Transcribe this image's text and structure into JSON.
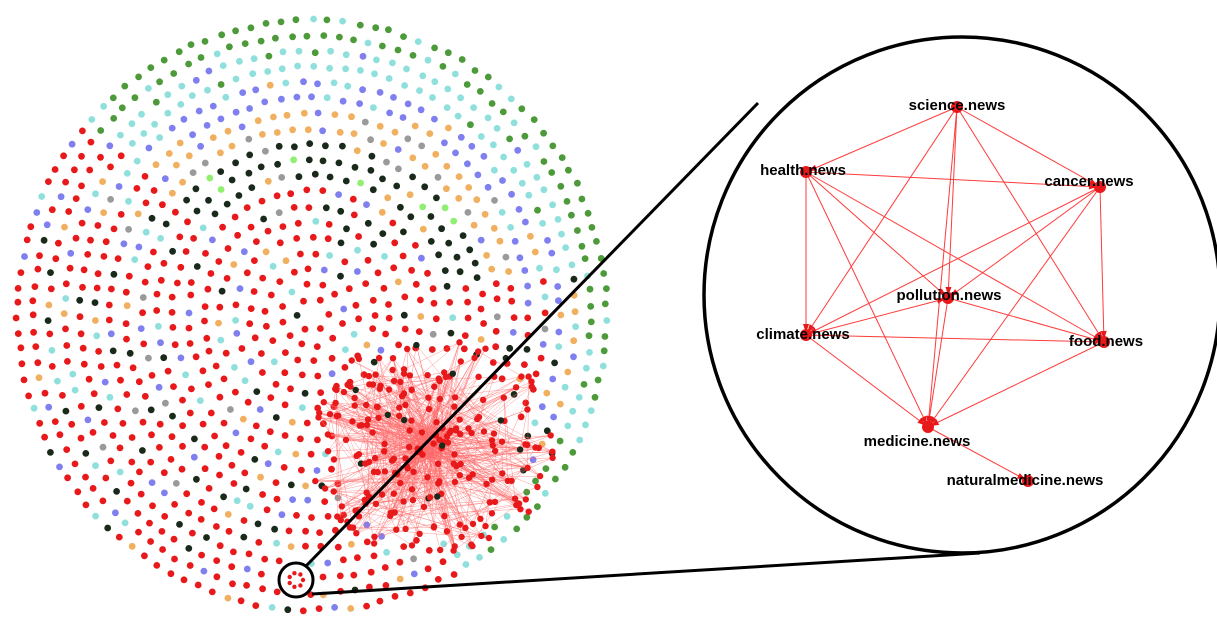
{
  "palette": {
    "red": "#e8191b",
    "black": "#1a2a1a",
    "green": "#4d9a3a",
    "cyan": "#8fe0dc",
    "blue": "#7f7ff0",
    "orange": "#f0b060",
    "gray": "#9a9a9a",
    "lightgreen": "#90ee70",
    "edge": "#ff6a6a"
  },
  "zoom": {
    "nodes": [
      {
        "id": "science",
        "label": "science.news"
      },
      {
        "id": "health",
        "label": "health.news"
      },
      {
        "id": "cancer",
        "label": "cancer.news"
      },
      {
        "id": "pollution",
        "label": "pollution.news"
      },
      {
        "id": "climate",
        "label": "climate.news"
      },
      {
        "id": "food",
        "label": "food.news"
      },
      {
        "id": "medicine",
        "label": "medicine.news"
      },
      {
        "id": "naturalmedicine",
        "label": "naturalmedicine.news"
      }
    ],
    "edges": [
      [
        "science",
        "health"
      ],
      [
        "science",
        "cancer"
      ],
      [
        "science",
        "climate"
      ],
      [
        "science",
        "food"
      ],
      [
        "science",
        "pollution"
      ],
      [
        "science",
        "medicine"
      ],
      [
        "health",
        "cancer"
      ],
      [
        "health",
        "climate"
      ],
      [
        "health",
        "pollution"
      ],
      [
        "health",
        "food"
      ],
      [
        "health",
        "medicine"
      ],
      [
        "cancer",
        "climate"
      ],
      [
        "cancer",
        "pollution"
      ],
      [
        "cancer",
        "food"
      ],
      [
        "cancer",
        "medicine"
      ],
      [
        "climate",
        "pollution"
      ],
      [
        "climate",
        "food"
      ],
      [
        "climate",
        "medicine"
      ],
      [
        "pollution",
        "food"
      ],
      [
        "pollution",
        "medicine"
      ],
      [
        "food",
        "medicine"
      ],
      [
        "medicine",
        "naturalmedicine"
      ]
    ]
  }
}
